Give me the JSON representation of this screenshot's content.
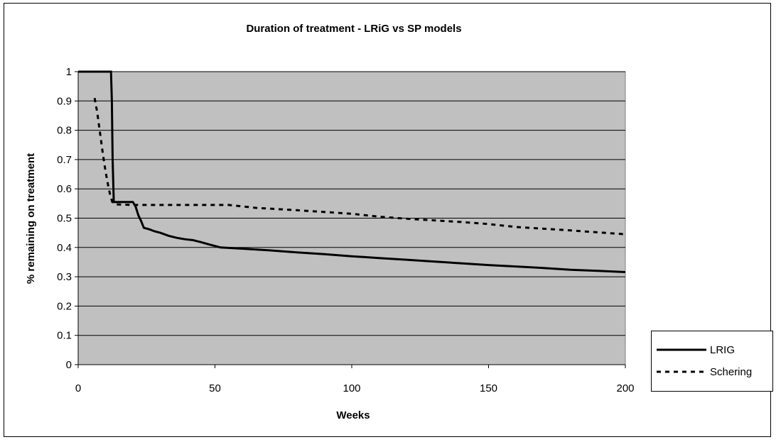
{
  "chart_data": {
    "type": "line",
    "title": "Duration of treatment - LRiG vs SP models",
    "xlabel": "Weeks",
    "ylabel": "% remaining on treatment",
    "xlim": [
      0,
      200
    ],
    "ylim": [
      0,
      1
    ],
    "xticks": [
      "0",
      "50",
      "100",
      "150",
      "200"
    ],
    "yticks": [
      "0",
      "0.1",
      "0.2",
      "0.3",
      "0.4",
      "0.5",
      "0.6",
      "0.7",
      "0.8",
      "0.9",
      "1"
    ],
    "grid": "horizontal",
    "legend_position": "right",
    "plot_background": "#c0c0c0",
    "series": [
      {
        "name": "LRIG",
        "style": "solid",
        "color": "#000000",
        "points": [
          [
            0,
            1
          ],
          [
            12,
            1
          ],
          [
            12.3,
            0.9
          ],
          [
            12.6,
            0.7
          ],
          [
            13,
            0.555
          ],
          [
            20,
            0.555
          ],
          [
            21,
            0.54
          ],
          [
            22,
            0.51
          ],
          [
            23,
            0.49
          ],
          [
            24,
            0.467
          ],
          [
            26,
            0.462
          ],
          [
            28,
            0.455
          ],
          [
            30,
            0.45
          ],
          [
            33,
            0.44
          ],
          [
            36,
            0.433
          ],
          [
            39,
            0.428
          ],
          [
            42,
            0.425
          ],
          [
            45,
            0.418
          ],
          [
            48,
            0.41
          ],
          [
            50,
            0.405
          ],
          [
            52,
            0.4
          ],
          [
            60,
            0.396
          ],
          [
            70,
            0.39
          ],
          [
            80,
            0.383
          ],
          [
            90,
            0.377
          ],
          [
            100,
            0.37
          ],
          [
            110,
            0.364
          ],
          [
            120,
            0.358
          ],
          [
            130,
            0.352
          ],
          [
            140,
            0.346
          ],
          [
            150,
            0.34
          ],
          [
            160,
            0.335
          ],
          [
            170,
            0.33
          ],
          [
            180,
            0.324
          ],
          [
            190,
            0.32
          ],
          [
            200,
            0.316
          ]
        ]
      },
      {
        "name": "Schering",
        "style": "dashed",
        "color": "#000000",
        "points": [
          [
            6,
            0.91
          ],
          [
            7,
            0.86
          ],
          [
            8,
            0.79
          ],
          [
            9,
            0.72
          ],
          [
            10,
            0.66
          ],
          [
            11,
            0.61
          ],
          [
            11.8,
            0.575
          ],
          [
            12.5,
            0.555
          ],
          [
            14,
            0.547
          ],
          [
            20,
            0.545
          ],
          [
            55,
            0.545
          ],
          [
            65,
            0.535
          ],
          [
            80,
            0.527
          ],
          [
            100,
            0.515
          ],
          [
            110,
            0.505
          ],
          [
            120,
            0.498
          ],
          [
            140,
            0.487
          ],
          [
            150,
            0.48
          ],
          [
            160,
            0.47
          ],
          [
            180,
            0.458
          ],
          [
            200,
            0.445
          ]
        ]
      }
    ]
  }
}
